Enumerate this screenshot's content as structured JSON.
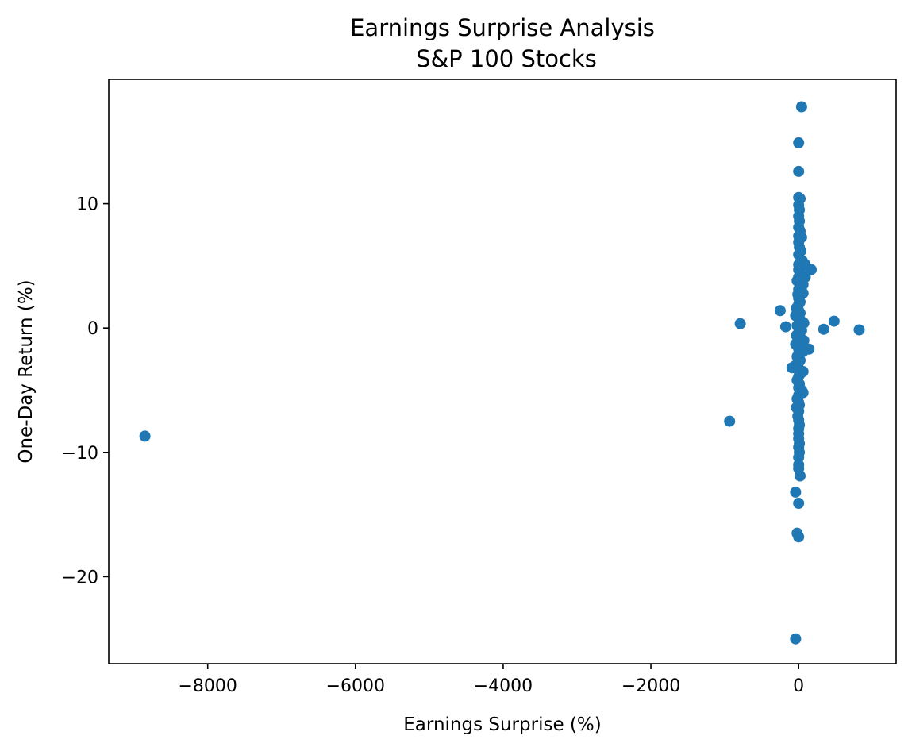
{
  "chart_data": {
    "type": "scatter",
    "title": "Earnings Surprise Analysis",
    "subtitle": "S&P 100 Stocks",
    "xlabel": "Earnings Surprise (%)",
    "ylabel": "One-Day Return (%)",
    "xlim": [
      -9340,
      1320
    ],
    "ylim": [
      -27,
      20
    ],
    "xticks": [
      -8000,
      -6000,
      -4000,
      -2000,
      0
    ],
    "xtick_labels": [
      "−8000",
      "−6000",
      "−4000",
      "−2000",
      "0"
    ],
    "yticks": [
      -20,
      -10,
      0,
      10
    ],
    "ytick_labels": [
      "−20",
      "−10",
      "0",
      "10"
    ],
    "grid": false,
    "marker_color": "#1f77b4",
    "points": [
      [
        -8850,
        -8.7
      ],
      [
        -935,
        -7.5
      ],
      [
        -790,
        0.35
      ],
      [
        -250,
        1.4
      ],
      [
        -175,
        0.1
      ],
      [
        480,
        0.55
      ],
      [
        340,
        -0.1
      ],
      [
        820,
        -0.15
      ],
      [
        170,
        4.7
      ],
      [
        140,
        -1.7
      ],
      [
        90,
        4.1
      ],
      [
        60,
        3.5
      ],
      [
        60,
        -3.5
      ],
      [
        40,
        17.8
      ],
      [
        0,
        14.9
      ],
      [
        0,
        12.6
      ],
      [
        0,
        10.5
      ],
      [
        20,
        10.4
      ],
      [
        0,
        9.9
      ],
      [
        10,
        9.5
      ],
      [
        0,
        9.0
      ],
      [
        10,
        8.6
      ],
      [
        0,
        8.1
      ],
      [
        20,
        7.8
      ],
      [
        0,
        7.4
      ],
      [
        40,
        7.3
      ],
      [
        0,
        6.9
      ],
      [
        10,
        6.5
      ],
      [
        30,
        6.2
      ],
      [
        0,
        5.9
      ],
      [
        50,
        5.4
      ],
      [
        0,
        5.1
      ],
      [
        90,
        5.1
      ],
      [
        0,
        4.7
      ],
      [
        30,
        4.4
      ],
      [
        0,
        4.1
      ],
      [
        -20,
        3.8
      ],
      [
        20,
        3.5
      ],
      [
        0,
        3.1
      ],
      [
        60,
        2.8
      ],
      [
        -10,
        2.7
      ],
      [
        0,
        2.4
      ],
      [
        20,
        2.1
      ],
      [
        0,
        1.9
      ],
      [
        -30,
        1.6
      ],
      [
        0,
        1.4
      ],
      [
        20,
        1.2
      ],
      [
        -40,
        1.0
      ],
      [
        0,
        0.8
      ],
      [
        30,
        0.6
      ],
      [
        70,
        0.4
      ],
      [
        -20,
        0.2
      ],
      [
        0,
        0.0
      ],
      [
        40,
        -0.2
      ],
      [
        0,
        -0.4
      ],
      [
        -30,
        -0.6
      ],
      [
        20,
        -0.8
      ],
      [
        70,
        -1.0
      ],
      [
        0,
        -1.2
      ],
      [
        -40,
        -1.3
      ],
      [
        30,
        -1.5
      ],
      [
        0,
        -1.7
      ],
      [
        60,
        -1.9
      ],
      [
        0,
        -2.1
      ],
      [
        -20,
        -2.3
      ],
      [
        20,
        -2.6
      ],
      [
        0,
        -2.8
      ],
      [
        -40,
        -3.0
      ],
      [
        -90,
        -3.2
      ],
      [
        0,
        -3.4
      ],
      [
        20,
        -3.7
      ],
      [
        0,
        -3.9
      ],
      [
        -20,
        -4.2
      ],
      [
        10,
        -4.5
      ],
      [
        0,
        -4.8
      ],
      [
        40,
        -5.0
      ],
      [
        60,
        -5.2
      ],
      [
        0,
        -5.4
      ],
      [
        -20,
        -5.7
      ],
      [
        0,
        -6.0
      ],
      [
        10,
        -6.2
      ],
      [
        -30,
        -6.4
      ],
      [
        0,
        -6.7
      ],
      [
        -10,
        -7.1
      ],
      [
        0,
        -7.4
      ],
      [
        10,
        -7.8
      ],
      [
        0,
        -8.1
      ],
      [
        0,
        -8.5
      ],
      [
        0,
        -8.9
      ],
      [
        10,
        -9.3
      ],
      [
        0,
        -9.6
      ],
      [
        10,
        -10.0
      ],
      [
        0,
        -10.4
      ],
      [
        0,
        -11.0
      ],
      [
        0,
        -11.3
      ],
      [
        20,
        -11.9
      ],
      [
        -40,
        -13.2
      ],
      [
        0,
        -14.1
      ],
      [
        -20,
        -16.5
      ],
      [
        0,
        -16.8
      ],
      [
        -40,
        -25.0
      ]
    ]
  }
}
